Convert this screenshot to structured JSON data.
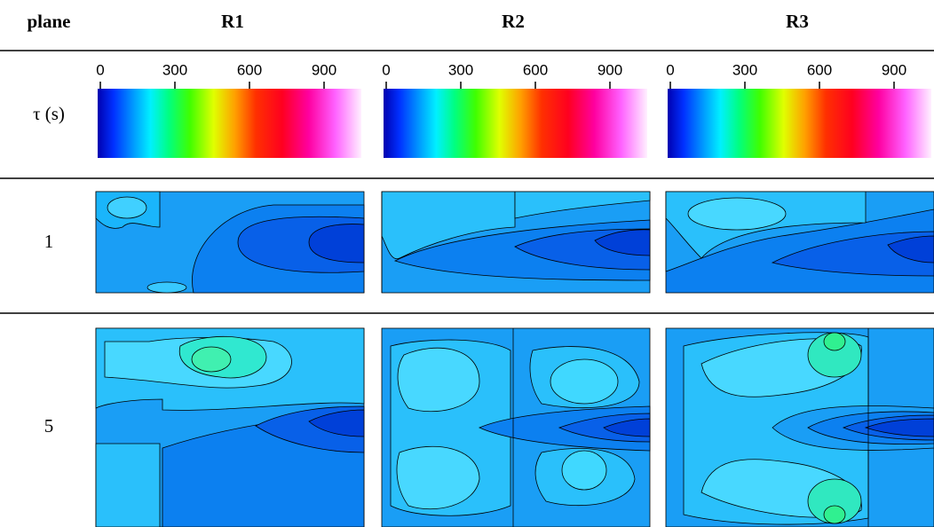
{
  "header": {
    "plane": "plane",
    "columns": [
      "R1",
      "R2",
      "R3"
    ]
  },
  "colorbar": {
    "label": "τ (s)",
    "ticks": [
      0,
      300,
      600,
      900
    ],
    "lim": [
      0,
      1050
    ]
  },
  "rows": [
    "1",
    "5"
  ]
}
